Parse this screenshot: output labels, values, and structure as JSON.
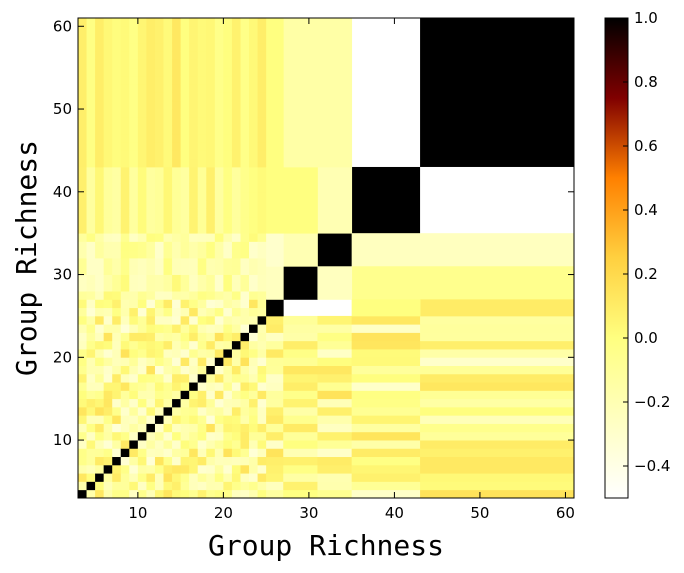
{
  "chart_data": {
    "type": "heatmap",
    "title": "",
    "xlabel": "Group Richness",
    "ylabel": "Group Richness",
    "xlim": [
      3,
      61
    ],
    "ylim": [
      3,
      61
    ],
    "x_ticks": [
      10,
      20,
      30,
      40,
      50,
      60
    ],
    "y_ticks": [
      10,
      20,
      30,
      40,
      50,
      60
    ],
    "colormap": "afmhot_r",
    "colorbar": {
      "vmin": -0.5,
      "vmax": 1.0,
      "ticks": [
        -0.4,
        -0.2,
        0.0,
        0.2,
        0.4,
        0.6,
        0.8,
        1.0
      ],
      "tick_labels": [
        "−0.4",
        "−0.2",
        "0.0",
        "0.2",
        "0.4",
        "0.6",
        "0.8",
        "1.0"
      ]
    },
    "diagonal_value": 1.0,
    "block_edges": [
      3,
      25,
      27,
      31,
      33,
      35,
      43,
      61
    ],
    "blocks": [
      {
        "x_range": [
          35,
          43
        ],
        "y_range": [
          43,
          61
        ],
        "value": -0.5
      },
      {
        "x_range": [
          43,
          61
        ],
        "y_range": [
          43,
          61
        ],
        "value": 1.0
      },
      {
        "x_range": [
          35,
          43
        ],
        "y_range": [
          35,
          43
        ],
        "value": 1.0
      },
      {
        "x_range": [
          43,
          61
        ],
        "y_range": [
          35,
          43
        ],
        "value": -0.5
      },
      {
        "x_range": [
          31,
          35
        ],
        "y_range": [
          31,
          35
        ],
        "value": 1.0
      },
      {
        "x_range": [
          27,
          31
        ],
        "y_range": [
          27,
          31
        ],
        "value": 1.0
      },
      {
        "x_range": [
          25,
          27
        ],
        "y_range": [
          25,
          27
        ],
        "value": 1.0
      },
      {
        "x_range": [
          35,
          61
        ],
        "y_range": [
          31,
          35
        ],
        "value": -0.25
      },
      {
        "x_range": [
          35,
          61
        ],
        "y_range": [
          27,
          31
        ],
        "value": -0.05
      },
      {
        "x_range": [
          27,
          31
        ],
        "y_range": [
          31,
          35
        ],
        "value": -0.2
      },
      {
        "x_range": [
          31,
          35
        ],
        "y_range": [
          35,
          43
        ],
        "value": -0.2
      },
      {
        "x_range": [
          27,
          31
        ],
        "y_range": [
          35,
          43
        ],
        "value": 0.0
      },
      {
        "x_range": [
          27,
          35
        ],
        "y_range": [
          43,
          61
        ],
        "value": -0.15
      },
      {
        "x_range": [
          25,
          27
        ],
        "y_range": [
          27,
          31
        ],
        "value": -0.25
      },
      {
        "x_range": [
          25,
          27
        ],
        "y_range": [
          31,
          35
        ],
        "value": -0.3
      },
      {
        "x_range": [
          25,
          27
        ],
        "y_range": [
          35,
          43
        ],
        "value": 0.0
      },
      {
        "x_range": [
          25,
          27
        ],
        "y_range": [
          43,
          61
        ],
        "value": 0.0
      },
      {
        "x_range": [
          31,
          35
        ],
        "y_range": [
          27,
          31
        ],
        "value": -0.25
      },
      {
        "x_range": [
          43,
          61
        ],
        "y_range": [
          25,
          27
        ],
        "value": 0.1
      },
      {
        "x_range": [
          35,
          43
        ],
        "y_range": [
          25,
          27
        ],
        "value": 0.0
      }
    ],
    "small_group_value_range": [
      -0.35,
      0.15
    ]
  }
}
